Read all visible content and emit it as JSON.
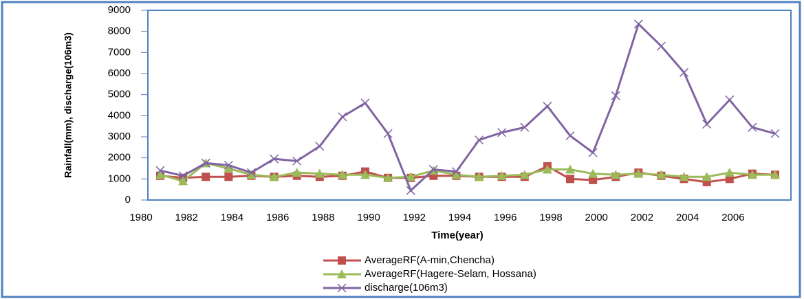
{
  "chart_data": {
    "type": "line",
    "x_label": "Time(year)",
    "y_label": "Rainfall(mm), discharge(106m3)",
    "categories": [
      "1980",
      null,
      "1982",
      null,
      "1984",
      null,
      "1986",
      null,
      "1988",
      null,
      "1990",
      null,
      "1992",
      null,
      "1994",
      null,
      "1996",
      null,
      "1998",
      null,
      "2000",
      null,
      "2002",
      null,
      "2004",
      null,
      "2006",
      null
    ],
    "series": [
      {
        "name": "AverageRF(A-min,Chencha)",
        "color": "#c0504d",
        "marker": "square",
        "values": [
          1150,
          1050,
          1100,
          1100,
          1150,
          1100,
          1150,
          1100,
          1150,
          1350,
          1050,
          1050,
          1150,
          1150,
          1100,
          1100,
          1100,
          1600,
          1000,
          950,
          1100,
          1300,
          1150,
          1000,
          850,
          1000,
          1250,
          1200
        ]
      },
      {
        "name": "AverageRF(Hagere-Selam, Hossana)",
        "color": "#9bbb59",
        "marker": "triangle",
        "values": [
          1200,
          900,
          1750,
          1500,
          1200,
          1100,
          1300,
          1250,
          1200,
          1200,
          1050,
          1100,
          1400,
          1200,
          1100,
          1150,
          1200,
          1450,
          1450,
          1250,
          1200,
          1250,
          1200,
          1100,
          1100,
          1300,
          1200,
          1200
        ]
      },
      {
        "name": "discharge(106m3)",
        "color": "#8064a2",
        "marker": "x",
        "values": [
          1400,
          1150,
          1750,
          1650,
          1300,
          1950,
          1850,
          2550,
          3950,
          4600,
          3150,
          450,
          1450,
          1350,
          2850,
          3200,
          3450,
          4450,
          3050,
          2250,
          4950,
          8350,
          7300,
          6050,
          3600,
          4750,
          3450,
          3150
        ]
      }
    ],
    "ylim": [
      0,
      9000
    ],
    "yticks": [
      0,
      1000,
      2000,
      3000,
      4000,
      5000,
      6000,
      7000,
      8000,
      9000
    ]
  }
}
